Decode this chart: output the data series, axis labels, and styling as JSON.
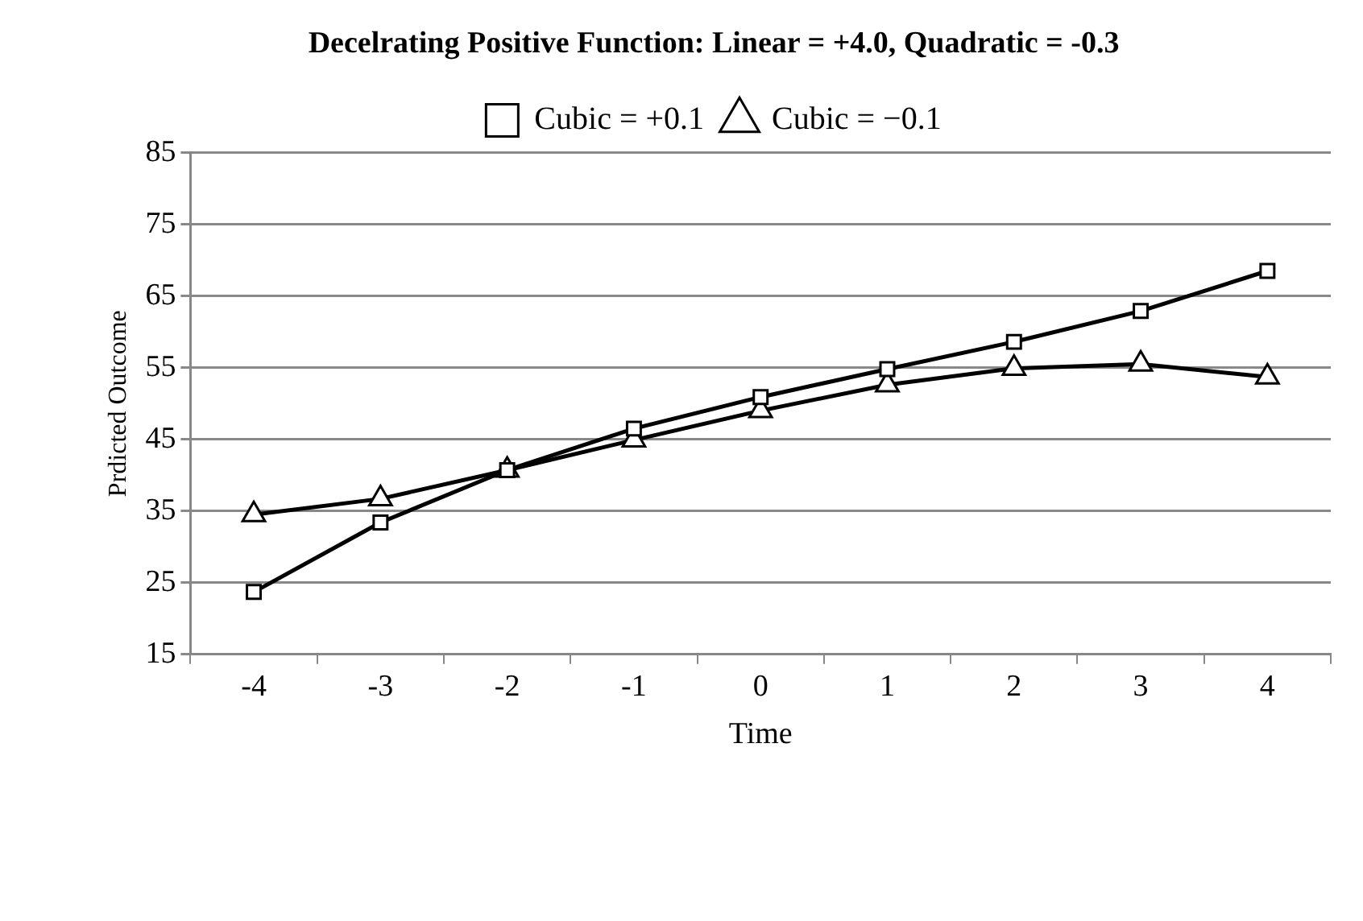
{
  "chart_data": {
    "type": "line",
    "title": "Decelrating Positive Function: Linear = +4.0, Quadratic = -0.3",
    "xlabel": "Time",
    "ylabel": "Prdicted Outcome",
    "categories": [
      "-4",
      "-3",
      "-2",
      "-1",
      "0",
      "1",
      "2",
      "3",
      "4"
    ],
    "series": [
      {
        "name": "Cubic = +0.1",
        "color": "#000000",
        "marker": "square",
        "values": [
          23.7,
          33.4,
          40.7,
          46.5,
          50.9,
          54.8,
          58.6,
          62.9,
          68.5
        ]
      },
      {
        "name": "Cubic = −0.1",
        "color": "#000000",
        "marker": "triangle",
        "values": [
          34.5,
          36.7,
          40.7,
          44.9,
          49.0,
          52.6,
          54.9,
          55.5,
          53.7
        ]
      }
    ],
    "ylim": [
      15,
      85
    ],
    "yticks": [
      15,
      25,
      35,
      45,
      55,
      65,
      75,
      85
    ],
    "grid": "y",
    "legend": "top",
    "line_style": "solid"
  }
}
